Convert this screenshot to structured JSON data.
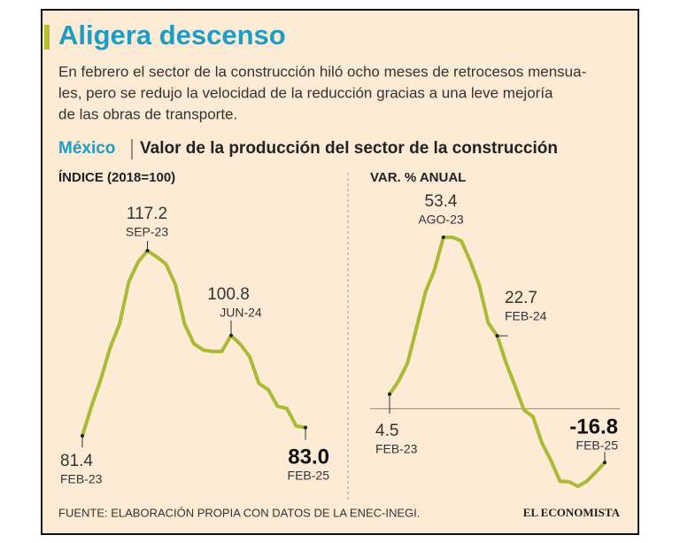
{
  "header": {
    "title": "Aligera descenso",
    "description": [
      "En febrero el sector de la construcción hiló ocho meses de retrocesos mensua-",
      "les, pero se redujo la velocidad de la reducción gracias a una leve mejoría",
      "de las obras de transporte."
    ],
    "region": "México",
    "subtitle": "Valor de la producción del sector de la construcción"
  },
  "chart_data": [
    {
      "type": "line",
      "y_label": "ÍNDICE (2018=100)",
      "color": "#a9ba35",
      "categories": [
        "FEB-23",
        null,
        null,
        null,
        null,
        null,
        null,
        "SEP-23",
        null,
        null,
        null,
        null,
        null,
        null,
        null,
        null,
        "JUN-24",
        null,
        null,
        null,
        null,
        null,
        null,
        null,
        "FEB-25"
      ],
      "values": [
        81.4,
        87.2,
        92.4,
        98.5,
        103.0,
        111.2,
        115.0,
        117.2,
        116.0,
        114.6,
        110.7,
        103.0,
        99.2,
        98.0,
        97.7,
        97.7,
        100.8,
        99.1,
        96.7,
        91.5,
        90.3,
        87.1,
        86.7,
        83.3,
        83.0
      ],
      "value_labels": [
        "81.4",
        null,
        null,
        null,
        null,
        null,
        null,
        "117.2",
        null,
        null,
        null,
        null,
        null,
        null,
        null,
        null,
        "100.8",
        null,
        null,
        null,
        null,
        null,
        null,
        null,
        "83.0"
      ],
      "ylim": [
        70,
        125
      ]
    },
    {
      "type": "line",
      "y_label": "VAR. % ANUAL",
      "color": "#a9ba35",
      "categories": [
        "FEB-23",
        null,
        null,
        null,
        null,
        null,
        "AGO-23",
        null,
        null,
        null,
        null,
        null,
        "FEB-24",
        null,
        null,
        null,
        null,
        null,
        null,
        null,
        null,
        null,
        null,
        null,
        "FEB-25"
      ],
      "values": [
        4.5,
        8.6,
        14.2,
        25.2,
        36.3,
        43.2,
        53.4,
        53.4,
        52.3,
        46.0,
        38.5,
        26.7,
        22.7,
        14.2,
        7.0,
        -0.5,
        -2.5,
        -10.7,
        -16.2,
        -22.6,
        -22.8,
        -24.2,
        -22.6,
        -19.8,
        -16.8
      ],
      "value_labels": [
        "4.5",
        null,
        null,
        null,
        null,
        null,
        "53.4",
        null,
        null,
        null,
        null,
        null,
        "22.7",
        null,
        null,
        null,
        null,
        null,
        null,
        null,
        null,
        null,
        null,
        null,
        "-16.8"
      ],
      "ylim": [
        -30,
        60
      ],
      "hline": 0
    }
  ],
  "source": "FUENTE: ELABORACIÓN PROPIA CON DATOS DE LA ENEC-INEGI.",
  "logo": "EL ECONOMISTA"
}
